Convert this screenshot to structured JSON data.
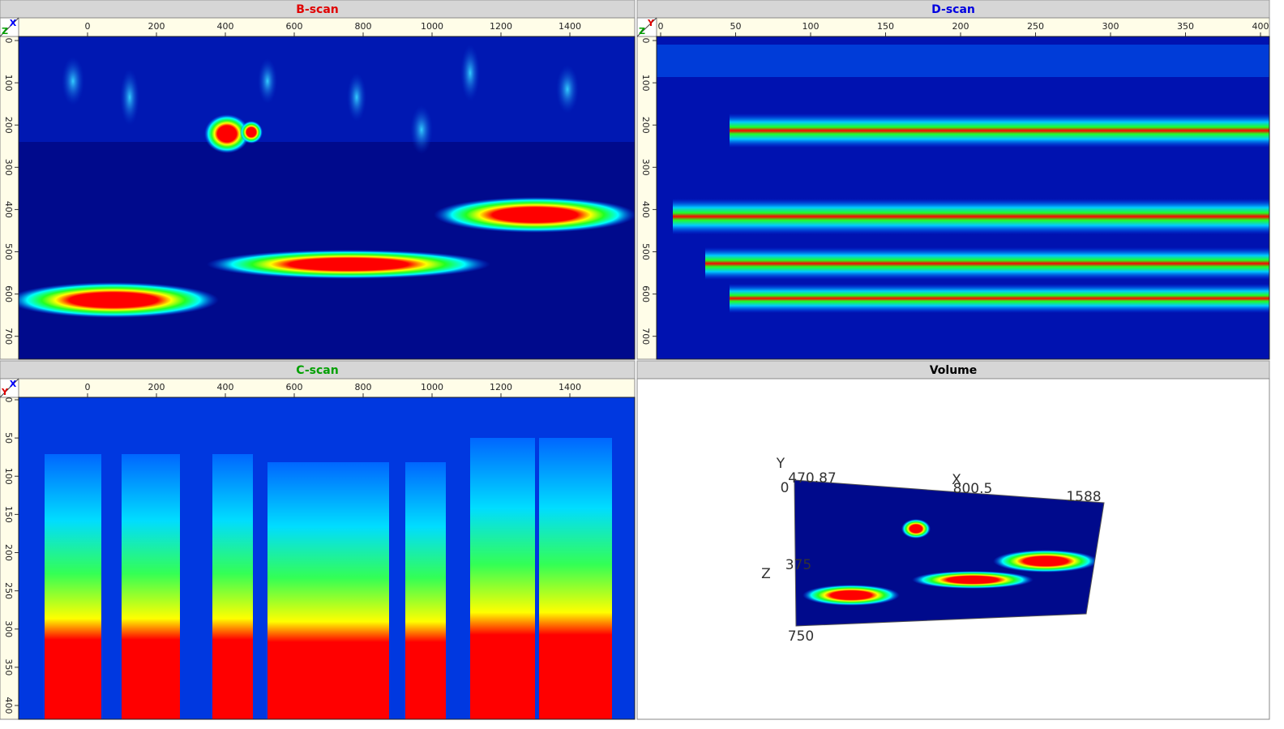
{
  "panels": [
    {
      "title": "B-scan",
      "title_color": "#e00000",
      "corner": [
        {
          "label": "X",
          "color": "#0000ff"
        },
        {
          "label": "Z",
          "color": "#00a000"
        }
      ],
      "xticks": [
        0,
        200,
        400,
        600,
        800,
        1000,
        1200,
        1400
      ],
      "yticks": [
        0,
        100,
        200,
        300,
        400,
        500,
        600,
        700
      ]
    },
    {
      "title": "D-scan",
      "title_color": "#0000e0",
      "corner": [
        {
          "label": "Y",
          "color": "#e00000"
        },
        {
          "label": "Z",
          "color": "#00a000"
        }
      ],
      "xticks": [
        0,
        50,
        100,
        150,
        200,
        250,
        300,
        350,
        400
      ],
      "yticks": [
        0,
        100,
        200,
        300,
        400,
        500,
        600,
        700
      ]
    },
    {
      "title": "C-scan",
      "title_color": "#00a000",
      "corner": [
        {
          "label": "X",
          "color": "#0000ff"
        },
        {
          "label": "Y",
          "color": "#e00000"
        }
      ],
      "xticks": [
        0,
        200,
        400,
        600,
        800,
        1000,
        1200,
        1400
      ],
      "yticks": [
        0,
        50,
        100,
        150,
        200,
        250,
        300,
        350,
        400
      ]
    }
  ],
  "volume": {
    "title": "Volume",
    "axis_y": "Y",
    "axis_x": "X",
    "axis_z": "Z",
    "y_start": "0",
    "y_end": "470.87",
    "x_mid": "800.5",
    "x_end": "1588",
    "z_mid": "375",
    "z_end": "750"
  }
}
